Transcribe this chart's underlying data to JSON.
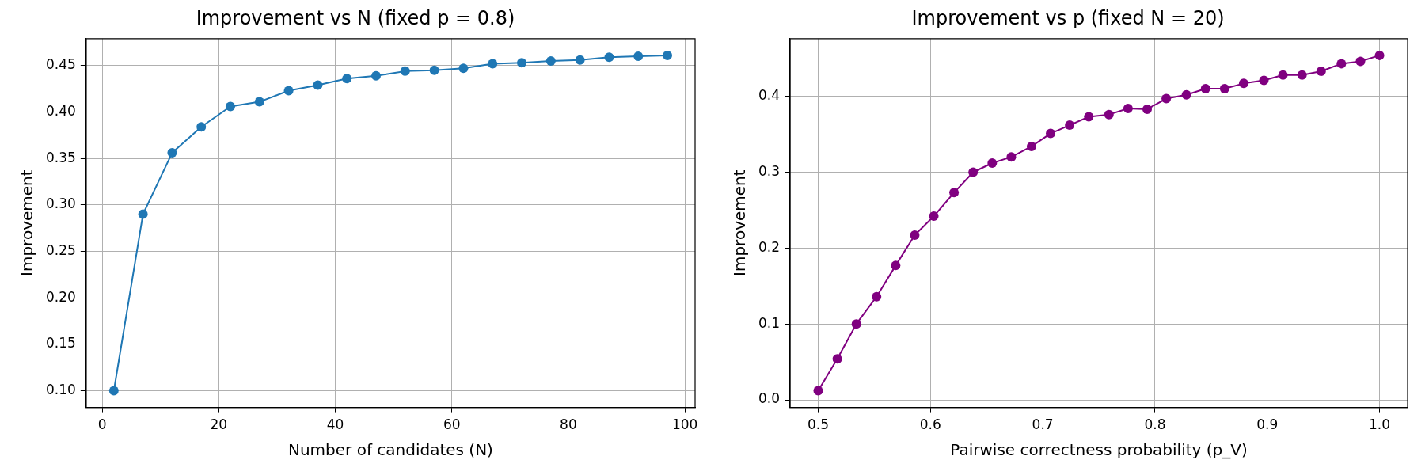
{
  "chart_data": [
    {
      "type": "line",
      "title": "Improvement vs N (fixed p = 0.8)",
      "xlabel": "Number of candidates (N)",
      "ylabel": "Improvement",
      "x": [
        2,
        7,
        12,
        17,
        22,
        27,
        32,
        37,
        42,
        47,
        52,
        57,
        62,
        67,
        72,
        77,
        82,
        87,
        92,
        97
      ],
      "series": [
        {
          "color": "#1f77b4",
          "values": [
            0.1,
            0.29,
            0.356,
            0.384,
            0.406,
            0.411,
            0.423,
            0.429,
            0.436,
            0.439,
            0.444,
            0.445,
            0.447,
            0.452,
            0.453,
            0.455,
            0.456,
            0.459,
            0.46,
            0.461
          ]
        }
      ],
      "xlim": [
        -2.75,
        101.75
      ],
      "xticks": [
        0,
        20,
        40,
        60,
        80,
        100
      ],
      "ylim": [
        0.082,
        0.479
      ],
      "yticks": [
        {
          "value": 0.1,
          "label": "0.10"
        },
        {
          "value": 0.15,
          "label": "0.15"
        },
        {
          "value": 0.2,
          "label": "0.20"
        },
        {
          "value": 0.25,
          "label": "0.25"
        },
        {
          "value": 0.3,
          "label": "0.30"
        },
        {
          "value": 0.35,
          "label": "0.35"
        },
        {
          "value": 0.4,
          "label": "0.40"
        },
        {
          "value": 0.45,
          "label": "0.45"
        }
      ],
      "grid": true,
      "marker": "circle",
      "line_style": "solid"
    },
    {
      "type": "line",
      "title": "Improvement vs p (fixed N = 20)",
      "xlabel": "Pairwise correctness probability (p_V)",
      "ylabel": "Improvement",
      "x": [
        0.5,
        0.517,
        0.534,
        0.552,
        0.569,
        0.586,
        0.603,
        0.621,
        0.638,
        0.655,
        0.672,
        0.69,
        0.707,
        0.724,
        0.741,
        0.759,
        0.776,
        0.793,
        0.81,
        0.828,
        0.845,
        0.862,
        0.879,
        0.897,
        0.914,
        0.931,
        0.948,
        0.966,
        0.983,
        1.0
      ],
      "series": [
        {
          "color": "#800080",
          "values": [
            0.012,
            0.054,
            0.1,
            0.136,
            0.177,
            0.217,
            0.242,
            0.273,
            0.3,
            0.312,
            0.32,
            0.334,
            0.351,
            0.362,
            0.373,
            0.376,
            0.384,
            0.383,
            0.397,
            0.402,
            0.41,
            0.41,
            0.417,
            0.421,
            0.428,
            0.428,
            0.433,
            0.443,
            0.446,
            0.454
          ]
        }
      ],
      "xlim": [
        0.475,
        1.025
      ],
      "xticks": [
        0.5,
        0.6,
        0.7,
        0.8,
        0.9,
        {
          "value": 1.0,
          "label": "1.0"
        }
      ],
      "ylim": [
        -0.01,
        0.476
      ],
      "yticks": [
        {
          "value": 0,
          "label": "0.0"
        },
        0.1,
        0.2,
        0.3,
        0.4
      ],
      "grid": true,
      "marker": "circle",
      "line_style": "solid"
    }
  ]
}
